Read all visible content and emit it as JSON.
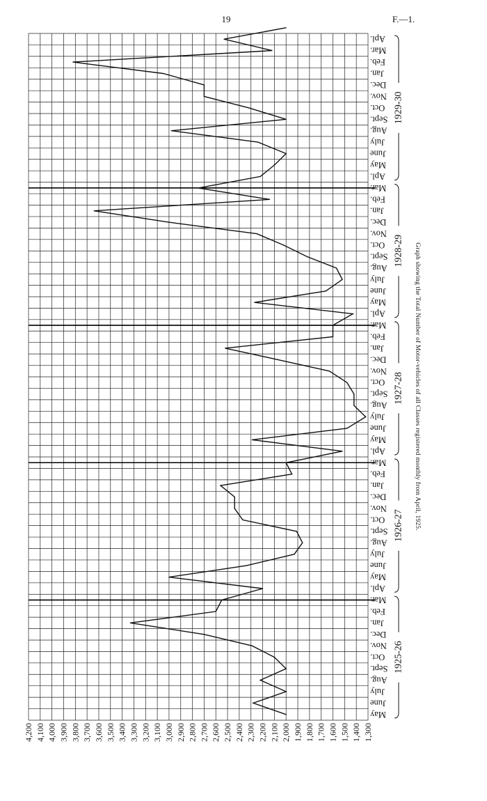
{
  "header": {
    "page_number": "19",
    "page_ref": "F.—1."
  },
  "chart_data": {
    "type": "line",
    "title": "Graph showing the Total Number of Motor-vehicles of all Classes registered monthly from April, 1925.",
    "orientation": "rotated-90",
    "ylim": [
      1300,
      4200
    ],
    "y_ticks": [
      "4,200",
      "4,100",
      "4,000",
      "3,900",
      "3,800",
      "3,700",
      "3,600",
      "3,500",
      "3,400",
      "3,300",
      "3,200",
      "3,100",
      "3,000",
      "2,900",
      "2,800",
      "2,700",
      "2,600",
      "2,500",
      "2,400",
      "2,300",
      "2,200",
      "2,100",
      "2,000",
      "1,900",
      "1,800",
      "1,700",
      "1,600",
      "1,500",
      "1,400",
      "1,300"
    ],
    "years": [
      {
        "label": "1925-26",
        "months": [
          "May",
          "June",
          "July",
          "Aug.",
          "Sept.",
          "Oct.",
          "Nov.",
          "Dec.",
          "Jan.",
          "Feb.",
          "Mar."
        ]
      },
      {
        "label": "1926-27",
        "months": [
          "Apl.",
          "May",
          "June",
          "July",
          "Aug.",
          "Sept.",
          "Oct.",
          "Nov.",
          "Dec.",
          "Jan.",
          "Feb.",
          "Mar."
        ]
      },
      {
        "label": "1927-28",
        "months": [
          "Apl.",
          "May",
          "June",
          "July",
          "Aug.",
          "Sept.",
          "Oct.",
          "Nov.",
          "Dec.",
          "Jan.",
          "Feb.",
          "Mar."
        ]
      },
      {
        "label": "1928-29",
        "months": [
          "Apl.",
          "May",
          "June",
          "July",
          "Aug.",
          "Sept.",
          "Oct.",
          "Nov.",
          "Dec.",
          "Jan.",
          "Feb.",
          "Mar."
        ]
      },
      {
        "label": "1929-30",
        "months": [
          "Apl.",
          "May",
          "June",
          "July",
          "Aug.",
          "Sept.",
          "Oct.",
          "Nov.",
          "Dec.",
          "Jan.",
          "Feb.",
          "Mar.",
          "Apl."
        ]
      }
    ],
    "series": [
      {
        "values": [
          2000,
          2280,
          2000,
          2220,
          2000,
          2100,
          2290,
          2700,
          3330,
          2600,
          2550,
          2200,
          3000,
          2340,
          1930,
          1860,
          1910,
          2370,
          2440,
          2440,
          2560,
          1950,
          2000,
          1520,
          2290,
          1480,
          1320,
          1420,
          1420,
          1480,
          1630,
          2070,
          2520,
          1600,
          1600,
          1430,
          2270,
          1660,
          1520,
          1570,
          1820,
          2020,
          2250,
          3000,
          3640,
          2140,
          2750,
          2220,
          2100,
          2000,
          2240,
          2980,
          2000,
          2320,
          2700,
          2700,
          3050,
          3820,
          2120,
          2530,
          2000
        ]
      }
    ]
  }
}
